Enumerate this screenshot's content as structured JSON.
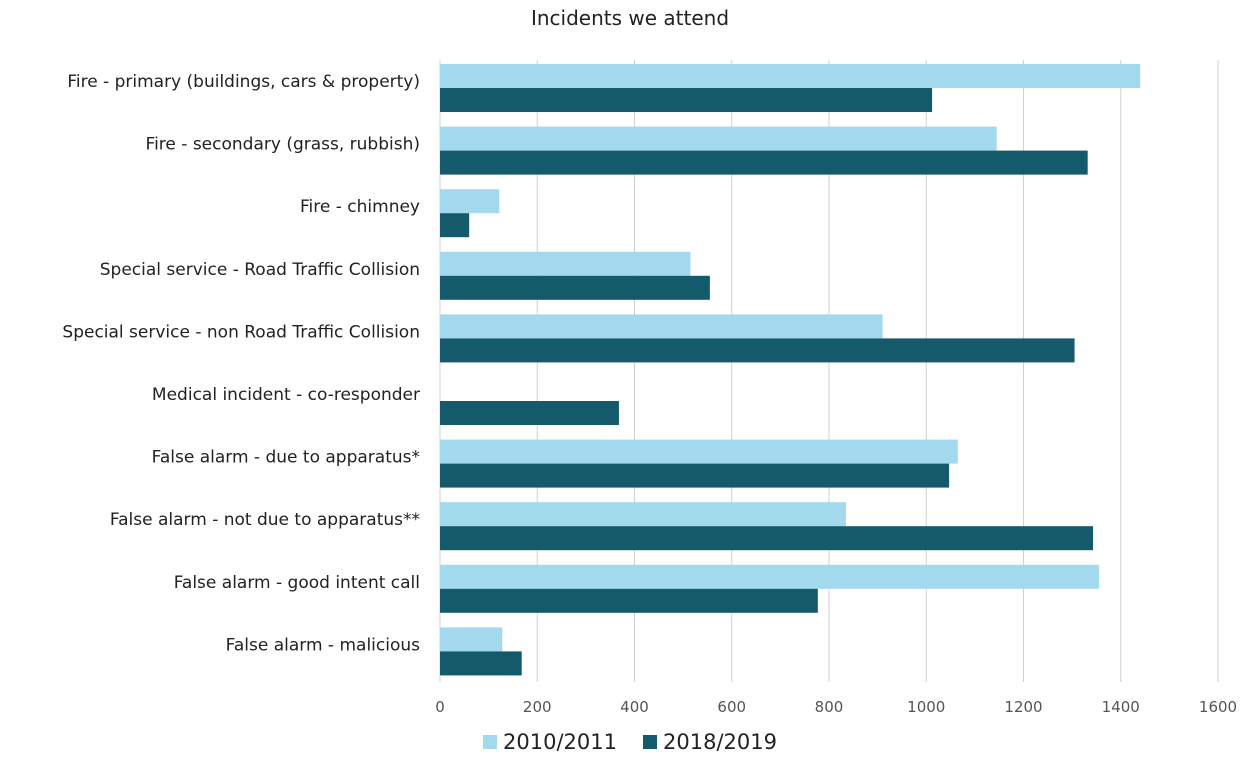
{
  "chart_data": {
    "type": "bar",
    "orientation": "horizontal",
    "title": "Incidents we attend",
    "categories": [
      "Fire - primary (buildings, cars & property)",
      "Fire - secondary (grass, rubbish)",
      "Fire - chimney",
      "Special service - Road Traffic Collision",
      "Special service - non Road Traffic Collision",
      "Medical incident - co-responder",
      "False alarm - due to apparatus*",
      "False alarm - not due to apparatus**",
      "False alarm - good intent call",
      "False alarm - malicious"
    ],
    "series": [
      {
        "name": "2010/2011",
        "color": "#a3d9ec",
        "values": [
          1440,
          1145,
          122,
          515,
          910,
          0,
          1065,
          835,
          1355,
          128
        ]
      },
      {
        "name": "2018/2019",
        "color": "#145a6a",
        "values": [
          1012,
          1332,
          60,
          555,
          1305,
          368,
          1047,
          1343,
          777,
          168
        ]
      }
    ],
    "xlim": [
      0,
      1600
    ],
    "xticks": [
      0,
      200,
      400,
      600,
      800,
      1000,
      1200,
      1400,
      1600
    ],
    "grid": true,
    "legend_position": "bottom"
  }
}
